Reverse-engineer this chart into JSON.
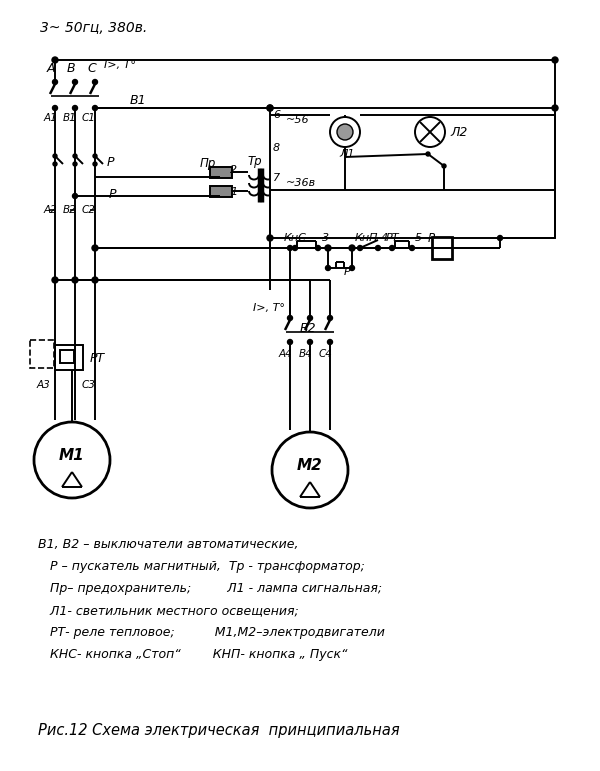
{
  "title": "Рис.12 Схема электрическая  принципиальная",
  "header": "3~ 50гц, 380в.",
  "bg_color": "#ffffff",
  "line_color": "#000000",
  "legend_lines": [
    "В1, В2 – выключатели автоматические,",
    "   Р – пускатель магнитный,  Тр - трансформатор;",
    "   Пр– предохранитель;         Л1 - лампа сигнальная;",
    "   Л1- светильник местного освещения;",
    "   РТ- реле тепловое;          М1,М2–электродвигатели",
    "   КНС- кнопка „Стоп“        КНП- кнопка „ Пуск“"
  ]
}
